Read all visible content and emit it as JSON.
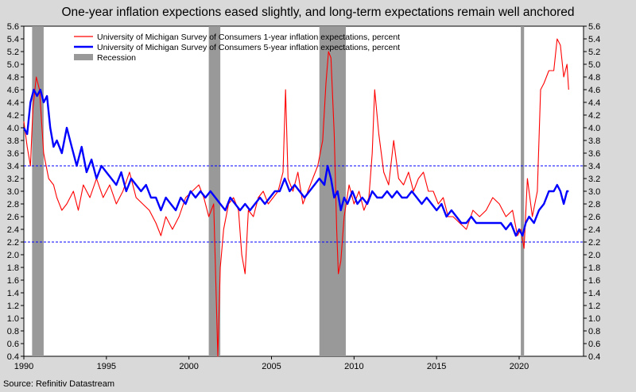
{
  "chart_data": {
    "type": "line",
    "title": "One-year inflation expections eased slightly, and long-term expectations remain well anchored",
    "source": "Source: Refinitiv Datastream",
    "xlim": [
      1990,
      2023.9
    ],
    "ylim": [
      0.4,
      5.6
    ],
    "x_ticks": [
      "1990",
      "1995",
      "2000",
      "2005",
      "2010",
      "2015",
      "2020"
    ],
    "y_ticks": [
      "0.4",
      "0.6",
      "0.8",
      "1.0",
      "1.2",
      "1.4",
      "1.6",
      "1.8",
      "2.0",
      "2.2",
      "2.4",
      "2.6",
      "2.8",
      "3.0",
      "3.2",
      "3.4",
      "3.6",
      "3.8",
      "4.0",
      "4.2",
      "4.4",
      "4.6",
      "4.8",
      "5.0",
      "5.2",
      "5.4",
      "5.6"
    ],
    "grid": false,
    "legend_position": "top-left",
    "reference_lines": [
      3.4,
      2.2
    ],
    "recessions": [
      [
        1990.5,
        1991.2
      ],
      [
        2001.2,
        2001.9
      ],
      [
        2007.9,
        2009.5
      ],
      [
        2020.1,
        2020.3
      ]
    ],
    "series": [
      {
        "name": "University of Michigan Survey of Consumers 1-year inflation expectations, percent",
        "color": "#ff0000",
        "points": [
          [
            1990.0,
            4.1
          ],
          [
            1990.2,
            3.7
          ],
          [
            1990.4,
            3.4
          ],
          [
            1990.55,
            4.3
          ],
          [
            1990.75,
            4.8
          ],
          [
            1990.95,
            4.6
          ],
          [
            1991.2,
            3.6
          ],
          [
            1991.5,
            3.2
          ],
          [
            1991.8,
            3.1
          ],
          [
            1992.0,
            2.9
          ],
          [
            1992.3,
            2.7
          ],
          [
            1992.6,
            2.8
          ],
          [
            1993.0,
            3.0
          ],
          [
            1993.3,
            2.7
          ],
          [
            1993.6,
            3.1
          ],
          [
            1994.0,
            2.9
          ],
          [
            1994.4,
            3.2
          ],
          [
            1994.8,
            2.9
          ],
          [
            1995.2,
            3.1
          ],
          [
            1995.6,
            2.8
          ],
          [
            1996.0,
            3.0
          ],
          [
            1996.4,
            3.3
          ],
          [
            1996.8,
            2.9
          ],
          [
            1997.2,
            2.8
          ],
          [
            1997.6,
            2.7
          ],
          [
            1998.0,
            2.5
          ],
          [
            1998.3,
            2.3
          ],
          [
            1998.6,
            2.6
          ],
          [
            1999.0,
            2.4
          ],
          [
            1999.4,
            2.6
          ],
          [
            1999.8,
            2.9
          ],
          [
            2000.2,
            3.0
          ],
          [
            2000.6,
            3.1
          ],
          [
            2000.9,
            2.9
          ],
          [
            2001.2,
            2.6
          ],
          [
            2001.5,
            2.8
          ],
          [
            2001.75,
            0.4
          ],
          [
            2001.9,
            1.8
          ],
          [
            2002.1,
            2.4
          ],
          [
            2002.4,
            2.8
          ],
          [
            2002.7,
            2.9
          ],
          [
            2003.0,
            2.7
          ],
          [
            2003.2,
            2.0
          ],
          [
            2003.4,
            1.7
          ],
          [
            2003.6,
            2.7
          ],
          [
            2003.9,
            2.6
          ],
          [
            2004.2,
            2.9
          ],
          [
            2004.5,
            3.0
          ],
          [
            2004.8,
            2.8
          ],
          [
            2005.1,
            2.9
          ],
          [
            2005.4,
            3.0
          ],
          [
            2005.7,
            3.3
          ],
          [
            2005.85,
            4.6
          ],
          [
            2006.0,
            3.2
          ],
          [
            2006.3,
            3.0
          ],
          [
            2006.6,
            3.3
          ],
          [
            2006.9,
            2.8
          ],
          [
            2007.2,
            3.0
          ],
          [
            2007.5,
            3.2
          ],
          [
            2007.8,
            3.4
          ],
          [
            2008.1,
            3.8
          ],
          [
            2008.3,
            4.7
          ],
          [
            2008.45,
            5.2
          ],
          [
            2008.6,
            5.1
          ],
          [
            2008.8,
            3.9
          ],
          [
            2008.95,
            2.4
          ],
          [
            2009.05,
            1.7
          ],
          [
            2009.2,
            1.9
          ],
          [
            2009.4,
            2.6
          ],
          [
            2009.7,
            3.1
          ],
          [
            2010.0,
            2.8
          ],
          [
            2010.3,
            3.0
          ],
          [
            2010.6,
            2.7
          ],
          [
            2010.9,
            2.9
          ],
          [
            2011.1,
            3.6
          ],
          [
            2011.25,
            4.6
          ],
          [
            2011.5,
            3.9
          ],
          [
            2011.8,
            3.3
          ],
          [
            2012.1,
            3.1
          ],
          [
            2012.4,
            3.8
          ],
          [
            2012.7,
            3.2
          ],
          [
            2013.0,
            3.1
          ],
          [
            2013.3,
            3.3
          ],
          [
            2013.6,
            3.0
          ],
          [
            2013.9,
            3.2
          ],
          [
            2014.2,
            3.3
          ],
          [
            2014.5,
            3.0
          ],
          [
            2014.8,
            3.0
          ],
          [
            2015.1,
            2.8
          ],
          [
            2015.4,
            2.9
          ],
          [
            2015.7,
            2.6
          ],
          [
            2016.0,
            2.6
          ],
          [
            2016.4,
            2.5
          ],
          [
            2016.8,
            2.4
          ],
          [
            2017.2,
            2.7
          ],
          [
            2017.6,
            2.6
          ],
          [
            2018.0,
            2.7
          ],
          [
            2018.4,
            2.9
          ],
          [
            2018.8,
            2.8
          ],
          [
            2019.2,
            2.6
          ],
          [
            2019.6,
            2.7
          ],
          [
            2019.9,
            2.3
          ],
          [
            2020.1,
            2.4
          ],
          [
            2020.3,
            2.1
          ],
          [
            2020.5,
            3.2
          ],
          [
            2020.8,
            2.6
          ],
          [
            2021.1,
            3.0
          ],
          [
            2021.3,
            4.6
          ],
          [
            2021.5,
            4.7
          ],
          [
            2021.8,
            4.9
          ],
          [
            2022.1,
            4.9
          ],
          [
            2022.3,
            5.4
          ],
          [
            2022.5,
            5.3
          ],
          [
            2022.7,
            4.8
          ],
          [
            2022.9,
            5.0
          ],
          [
            2023.0,
            4.6
          ]
        ]
      },
      {
        "name": "University of Michigan Survey of Consumers 5-year inflation expectations, percent",
        "color": "#0000ff",
        "points": [
          [
            1990.0,
            4.0
          ],
          [
            1990.2,
            3.9
          ],
          [
            1990.4,
            4.4
          ],
          [
            1990.6,
            4.6
          ],
          [
            1990.8,
            4.5
          ],
          [
            1991.0,
            4.6
          ],
          [
            1991.2,
            4.4
          ],
          [
            1991.4,
            4.5
          ],
          [
            1991.6,
            4.0
          ],
          [
            1991.8,
            3.7
          ],
          [
            1992.0,
            3.8
          ],
          [
            1992.3,
            3.6
          ],
          [
            1992.6,
            4.0
          ],
          [
            1992.9,
            3.7
          ],
          [
            1993.2,
            3.4
          ],
          [
            1993.5,
            3.7
          ],
          [
            1993.8,
            3.3
          ],
          [
            1994.1,
            3.5
          ],
          [
            1994.4,
            3.2
          ],
          [
            1994.7,
            3.4
          ],
          [
            1995.0,
            3.3
          ],
          [
            1995.3,
            3.2
          ],
          [
            1995.6,
            3.1
          ],
          [
            1995.9,
            3.3
          ],
          [
            1996.2,
            3.0
          ],
          [
            1996.5,
            3.2
          ],
          [
            1996.8,
            3.1
          ],
          [
            1997.1,
            3.0
          ],
          [
            1997.4,
            3.1
          ],
          [
            1997.7,
            2.9
          ],
          [
            1998.0,
            2.9
          ],
          [
            1998.3,
            2.7
          ],
          [
            1998.6,
            2.9
          ],
          [
            1998.9,
            2.8
          ],
          [
            1999.2,
            2.7
          ],
          [
            1999.5,
            2.9
          ],
          [
            1999.8,
            2.8
          ],
          [
            2000.1,
            3.0
          ],
          [
            2000.4,
            2.9
          ],
          [
            2000.7,
            3.0
          ],
          [
            2001.0,
            2.9
          ],
          [
            2001.3,
            3.0
          ],
          [
            2001.6,
            2.9
          ],
          [
            2001.9,
            2.8
          ],
          [
            2002.2,
            2.7
          ],
          [
            2002.5,
            2.9
          ],
          [
            2002.8,
            2.8
          ],
          [
            2003.1,
            2.7
          ],
          [
            2003.4,
            2.8
          ],
          [
            2003.7,
            2.7
          ],
          [
            2004.0,
            2.8
          ],
          [
            2004.3,
            2.9
          ],
          [
            2004.6,
            2.8
          ],
          [
            2004.9,
            2.9
          ],
          [
            2005.2,
            3.0
          ],
          [
            2005.5,
            3.0
          ],
          [
            2005.8,
            3.2
          ],
          [
            2006.1,
            3.0
          ],
          [
            2006.4,
            3.1
          ],
          [
            2006.7,
            3.0
          ],
          [
            2007.0,
            2.9
          ],
          [
            2007.3,
            3.0
          ],
          [
            2007.6,
            3.1
          ],
          [
            2007.9,
            3.2
          ],
          [
            2008.2,
            3.1
          ],
          [
            2008.4,
            3.4
          ],
          [
            2008.6,
            3.2
          ],
          [
            2008.8,
            2.9
          ],
          [
            2009.0,
            3.0
          ],
          [
            2009.2,
            2.7
          ],
          [
            2009.4,
            2.9
          ],
          [
            2009.6,
            2.8
          ],
          [
            2009.9,
            3.0
          ],
          [
            2010.2,
            2.8
          ],
          [
            2010.5,
            2.9
          ],
          [
            2010.8,
            2.8
          ],
          [
            2011.1,
            3.0
          ],
          [
            2011.4,
            2.9
          ],
          [
            2011.7,
            2.9
          ],
          [
            2012.0,
            3.0
          ],
          [
            2012.3,
            2.9
          ],
          [
            2012.6,
            3.0
          ],
          [
            2012.9,
            2.9
          ],
          [
            2013.2,
            2.9
          ],
          [
            2013.5,
            3.0
          ],
          [
            2013.8,
            2.9
          ],
          [
            2014.1,
            2.8
          ],
          [
            2014.4,
            2.9
          ],
          [
            2014.7,
            2.8
          ],
          [
            2015.0,
            2.7
          ],
          [
            2015.3,
            2.8
          ],
          [
            2015.6,
            2.6
          ],
          [
            2015.9,
            2.7
          ],
          [
            2016.2,
            2.6
          ],
          [
            2016.5,
            2.5
          ],
          [
            2016.8,
            2.5
          ],
          [
            2017.1,
            2.6
          ],
          [
            2017.4,
            2.5
          ],
          [
            2017.7,
            2.5
          ],
          [
            2018.0,
            2.5
          ],
          [
            2018.3,
            2.5
          ],
          [
            2018.6,
            2.5
          ],
          [
            2018.9,
            2.5
          ],
          [
            2019.2,
            2.4
          ],
          [
            2019.5,
            2.5
          ],
          [
            2019.8,
            2.3
          ],
          [
            2020.0,
            2.4
          ],
          [
            2020.2,
            2.3
          ],
          [
            2020.4,
            2.5
          ],
          [
            2020.6,
            2.6
          ],
          [
            2020.9,
            2.5
          ],
          [
            2021.2,
            2.7
          ],
          [
            2021.5,
            2.8
          ],
          [
            2021.8,
            3.0
          ],
          [
            2022.1,
            3.0
          ],
          [
            2022.3,
            3.1
          ],
          [
            2022.5,
            3.0
          ],
          [
            2022.7,
            2.8
          ],
          [
            2022.9,
            3.0
          ],
          [
            2023.0,
            3.0
          ]
        ]
      },
      {
        "name": "Recession",
        "color": "#999999"
      }
    ]
  }
}
